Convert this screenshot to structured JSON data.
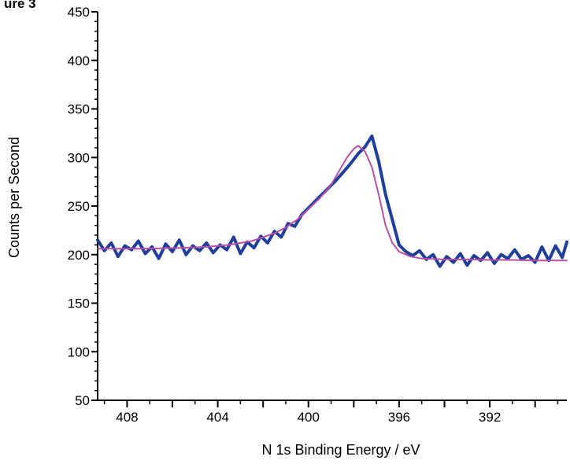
{
  "chart_data": {
    "type": "line",
    "title": "ure 3",
    "xlabel": "N 1s  Binding Energy / eV",
    "ylabel": "Counts per Second",
    "xlim": [
      409.3,
      388.6
    ],
    "ylim": [
      50,
      450
    ],
    "x_reversed": true,
    "x_ticks": [
      408,
      404,
      400,
      396,
      392
    ],
    "y_ticks": [
      50,
      100,
      150,
      200,
      250,
      300,
      350,
      400,
      450
    ],
    "grid": false,
    "legend": "none",
    "series": [
      {
        "role": "measured",
        "color": "#1f3f9a",
        "x": [
          409.3,
          409.0,
          408.7,
          408.4,
          408.1,
          407.8,
          407.5,
          407.2,
          406.9,
          406.6,
          406.3,
          406.0,
          405.7,
          405.4,
          405.1,
          404.8,
          404.5,
          404.2,
          403.9,
          403.6,
          403.3,
          403.0,
          402.7,
          402.4,
          402.1,
          401.8,
          401.5,
          401.2,
          400.9,
          400.6,
          400.3,
          400.0,
          399.7,
          399.4,
          399.1,
          398.8,
          398.5,
          398.2,
          398.0,
          397.8,
          397.5,
          397.2,
          396.9,
          396.6,
          396.3,
          396.0,
          395.7,
          395.4,
          395.1,
          394.8,
          394.5,
          394.2,
          393.9,
          393.6,
          393.3,
          393.0,
          392.7,
          392.4,
          392.1,
          391.8,
          391.5,
          391.2,
          390.9,
          390.6,
          390.3,
          390.0,
          389.7,
          389.4,
          389.1,
          388.8,
          388.6
        ],
        "y": [
          215,
          204,
          212,
          198,
          209,
          205,
          214,
          201,
          208,
          196,
          211,
          203,
          215,
          200,
          209,
          204,
          212,
          202,
          210,
          205,
          218,
          201,
          213,
          207,
          219,
          212,
          224,
          218,
          232,
          229,
          241,
          248,
          255,
          262,
          269,
          276,
          284,
          292,
          298,
          304,
          311,
          322,
          296,
          262,
          236,
          210,
          203,
          199,
          204,
          195,
          200,
          188,
          198,
          192,
          201,
          189,
          199,
          194,
          202,
          191,
          200,
          196,
          205,
          195,
          199,
          192,
          208,
          194,
          209,
          197,
          213
        ]
      },
      {
        "role": "fit",
        "color": "#b84fa6",
        "x": [
          409.3,
          408.5,
          407.5,
          406.5,
          405.5,
          404.5,
          403.5,
          402.5,
          401.5,
          401.0,
          400.5,
          400.0,
          399.5,
          399.0,
          398.6,
          398.3,
          398.0,
          397.8,
          397.5,
          397.2,
          396.9,
          396.6,
          396.3,
          396.0,
          395.5,
          395.0,
          394.0,
          393.0,
          392.0,
          391.0,
          390.0,
          389.0,
          388.6
        ],
        "y": [
          206,
          206,
          206,
          206.5,
          207,
          208,
          210,
          214,
          222,
          228,
          236,
          247,
          258,
          272,
          288,
          300,
          309,
          312,
          306,
          290,
          262,
          230,
          212,
          203,
          198,
          196,
          195,
          195,
          194.5,
          194.5,
          194,
          194,
          194
        ]
      }
    ]
  }
}
